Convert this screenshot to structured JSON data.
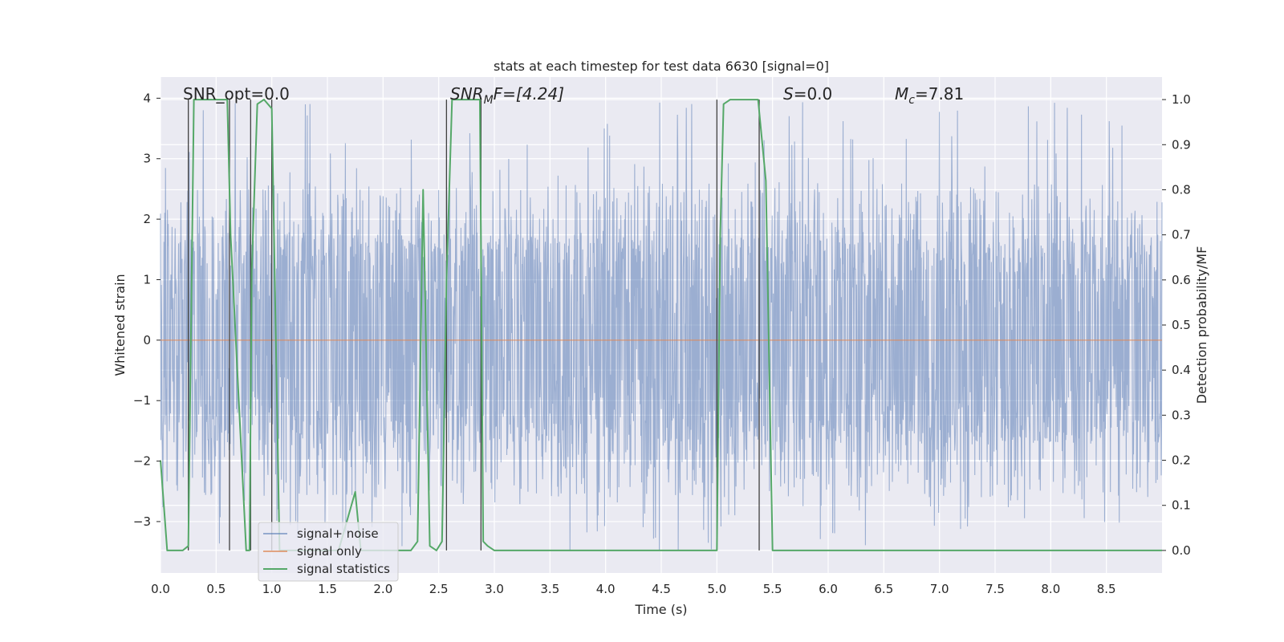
{
  "chart_data": {
    "type": "line",
    "title": "stats at each timestep for test data 6630 [signal=0]",
    "xlabel": "Time (s)",
    "ylabel": "Whitened strain",
    "y2label": "Detection probability/MF",
    "xlim": [
      0.0,
      9.0
    ],
    "ylim": [
      -3.85,
      4.35
    ],
    "y2lim": [
      -0.05,
      1.05
    ],
    "xticks": [
      0.0,
      0.5,
      1.0,
      1.5,
      2.0,
      2.5,
      3.0,
      3.5,
      4.0,
      4.5,
      5.0,
      5.5,
      6.0,
      6.5,
      7.0,
      7.5,
      8.0,
      8.5
    ],
    "xtick_labels": [
      "0.0",
      "0.5",
      "1.0",
      "1.5",
      "2.0",
      "2.5",
      "3.0",
      "3.5",
      "4.0",
      "4.5",
      "5.0",
      "5.5",
      "6.0",
      "6.5",
      "7.0",
      "7.5",
      "8.0",
      "8.5"
    ],
    "yticks": [
      -3,
      -2,
      -1,
      0,
      1,
      2,
      3,
      4
    ],
    "ytick_labels": [
      "−3",
      "−2",
      "−1",
      "0",
      "1",
      "2",
      "3",
      "4"
    ],
    "y2ticks": [
      0.0,
      0.1,
      0.2,
      0.3,
      0.4,
      0.5,
      0.6,
      0.7,
      0.8,
      0.9,
      1.0
    ],
    "y2tick_labels": [
      "0.0",
      "0.1",
      "0.2",
      "0.3",
      "0.4",
      "0.5",
      "0.6",
      "0.7",
      "0.8",
      "0.9",
      "1.0"
    ],
    "grid": true,
    "legend_position": "lower-left",
    "annotations": {
      "snr_opt": "SNR_opt=0.0",
      "snr_mf_main": "SNR",
      "snr_mf_sub": "M",
      "snr_mf_rest": "F=[4.24]",
      "s_main": "S",
      "s_rest": "=0.0",
      "mc_main": "M",
      "mc_sub": "c",
      "mc_rest": "=7.81"
    },
    "series": [
      {
        "name": "signal+ noise",
        "color": "#4c72b0",
        "description_axis": "left",
        "noise_envelope": {
          "x_range": [
            0.0,
            9.0
          ],
          "core_amplitude": 1.7,
          "peak_max": 4.0,
          "peak_min": -3.5
        }
      },
      {
        "name": "signal only",
        "color": "#dd8452",
        "axis": "left",
        "x": [
          0.0,
          9.0
        ],
        "y": [
          0.0,
          0.0
        ]
      },
      {
        "name": "signal statistics",
        "color": "#55a868",
        "axis": "right",
        "x": [
          0.0,
          0.06,
          0.2,
          0.25,
          0.3,
          0.6,
          0.63,
          0.77,
          0.8,
          0.82,
          0.87,
          0.93,
          1.0,
          1.07,
          1.12,
          1.6,
          1.75,
          1.8,
          2.1,
          2.25,
          2.31,
          2.36,
          2.42,
          2.48,
          2.53,
          2.57,
          2.62,
          2.87,
          2.9,
          2.94,
          3.0,
          5.0,
          5.03,
          5.06,
          5.12,
          5.37,
          5.44,
          5.5,
          9.0
        ],
        "y": [
          0.2,
          0.0,
          0.0,
          0.01,
          1.0,
          1.0,
          0.7,
          0.0,
          0.0,
          0.62,
          0.99,
          1.0,
          0.98,
          0.0,
          0.0,
          0.0,
          0.13,
          0.0,
          0.0,
          0.0,
          0.02,
          0.8,
          0.01,
          0.0,
          0.02,
          0.6,
          1.0,
          1.0,
          0.02,
          0.01,
          0.0,
          0.0,
          0.7,
          0.99,
          1.0,
          1.0,
          0.82,
          0.0,
          0.0
        ]
      }
    ],
    "vertical_markers": {
      "color": "#404040",
      "axis": "right",
      "x": [
        0.25,
        0.62,
        0.81,
        1.0,
        2.57,
        2.88,
        5.0,
        5.38
      ],
      "y_from": 0.0,
      "y_to": 1.0
    }
  }
}
